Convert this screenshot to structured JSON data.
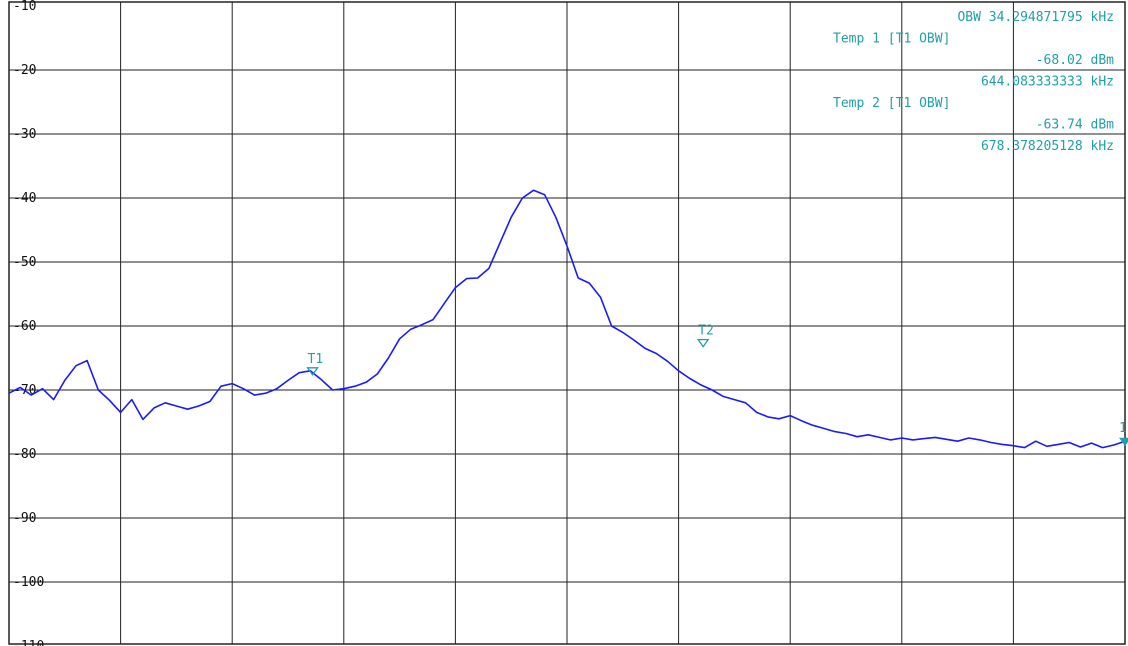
{
  "chart_data": {
    "type": "line",
    "title": "",
    "xlabel": "",
    "ylabel": "",
    "ylim": [
      -110,
      -10
    ],
    "y_ticks": [
      -10,
      -20,
      -30,
      -40,
      -50,
      -60,
      -70,
      -80,
      -90,
      -100,
      -110
    ],
    "y_tick_labels": [
      "-10",
      "-20",
      "-30",
      "-40",
      "-50",
      "-60",
      "-70",
      "-80",
      "-90",
      "-100",
      "-110"
    ],
    "x_divisions": 10,
    "grid": true,
    "trace_color": "#1a1aff",
    "annotation_color": "#20a0a8",
    "series": [
      {
        "x": [
          0,
          0.1,
          0.2,
          0.3,
          0.4,
          0.5,
          0.6,
          0.7,
          0.8,
          0.9,
          1.0,
          1.1,
          1.2,
          1.3,
          1.4,
          1.5,
          1.6,
          1.7,
          1.8,
          1.9,
          2.0,
          2.1,
          2.2,
          2.3,
          2.4,
          2.5,
          2.6,
          2.7,
          2.8,
          2.9,
          3.0,
          3.1,
          3.2,
          3.3,
          3.4,
          3.5,
          3.6,
          3.7,
          3.8,
          3.9,
          4.0,
          4.1,
          4.2,
          4.3,
          4.4,
          4.5,
          4.6,
          4.7,
          4.8,
          4.9,
          5.0,
          5.1,
          5.2,
          5.3,
          5.4,
          5.5,
          5.6,
          5.7,
          5.8,
          5.9,
          6.0,
          6.1,
          6.2,
          6.3,
          6.4,
          6.5,
          6.6,
          6.7,
          6.8,
          6.9,
          7.0,
          7.1,
          7.2,
          7.3,
          7.4,
          7.5,
          7.6,
          7.7,
          7.8,
          7.9,
          8.0,
          8.1,
          8.2,
          8.3,
          8.4,
          8.5,
          8.6,
          8.7,
          8.8,
          8.9,
          9.0,
          9.1,
          9.2,
          9.3,
          9.4,
          9.5,
          9.6,
          9.7,
          9.8,
          9.9,
          10.0
        ],
        "y": [
          -70.5,
          -69.6,
          -70.8,
          -69.8,
          -71.5,
          -68.5,
          -66.2,
          -65.4,
          -70.0,
          -71.6,
          -73.5,
          -71.5,
          -74.6,
          -72.8,
          -72.0,
          -72.5,
          -73.0,
          -72.5,
          -71.8,
          -69.4,
          -69.0,
          -69.8,
          -70.8,
          -70.5,
          -69.8,
          -68.5,
          -67.3,
          -67.0,
          -68.4,
          -70.0,
          -69.8,
          -69.4,
          -68.8,
          -67.5,
          -65.0,
          -62.0,
          -60.5,
          -59.8,
          -59.0,
          -56.5,
          -54.0,
          -52.6,
          -52.5,
          -51.0,
          -47.0,
          -43.0,
          -40.0,
          -38.8,
          -39.5,
          -43.0,
          -47.5,
          -52.5,
          -53.3,
          -55.5,
          -60.0,
          -61.0,
          -62.2,
          -63.5,
          -64.3,
          -65.5,
          -67.0,
          -68.2,
          -69.2,
          -70.0,
          -71.0,
          -71.5,
          -72.0,
          -73.5,
          -74.2,
          -74.5,
          -74.0,
          -74.8,
          -75.5,
          -76.0,
          -76.5,
          -76.8,
          -77.3,
          -77.0,
          -77.4,
          -77.8,
          -77.5,
          -77.8,
          -77.6,
          -77.4,
          -77.7,
          -78.0,
          -77.5,
          -77.8,
          -78.2,
          -78.5,
          -78.7,
          -79.0,
          -78.0,
          -78.8,
          -78.5,
          -78.2,
          -78.9,
          -78.3,
          -79.0,
          -78.6,
          -78.0
        ]
      }
    ],
    "markers": [
      {
        "label": "T1",
        "x": 2.72,
        "y": -67.0
      },
      {
        "label": "T2",
        "x": 6.22,
        "y": -62.6
      },
      {
        "label": "1",
        "x": 10.0,
        "y": -78.0
      }
    ],
    "readout": [
      "OBW 34.294871795 kHz",
      "Temp 1 [T1 OBW]",
      "-68.02 dBm",
      "644.083333333 kHz",
      "Temp 2 [T1 OBW]",
      "-63.74 dBm",
      "678.378205128 kHz"
    ]
  }
}
